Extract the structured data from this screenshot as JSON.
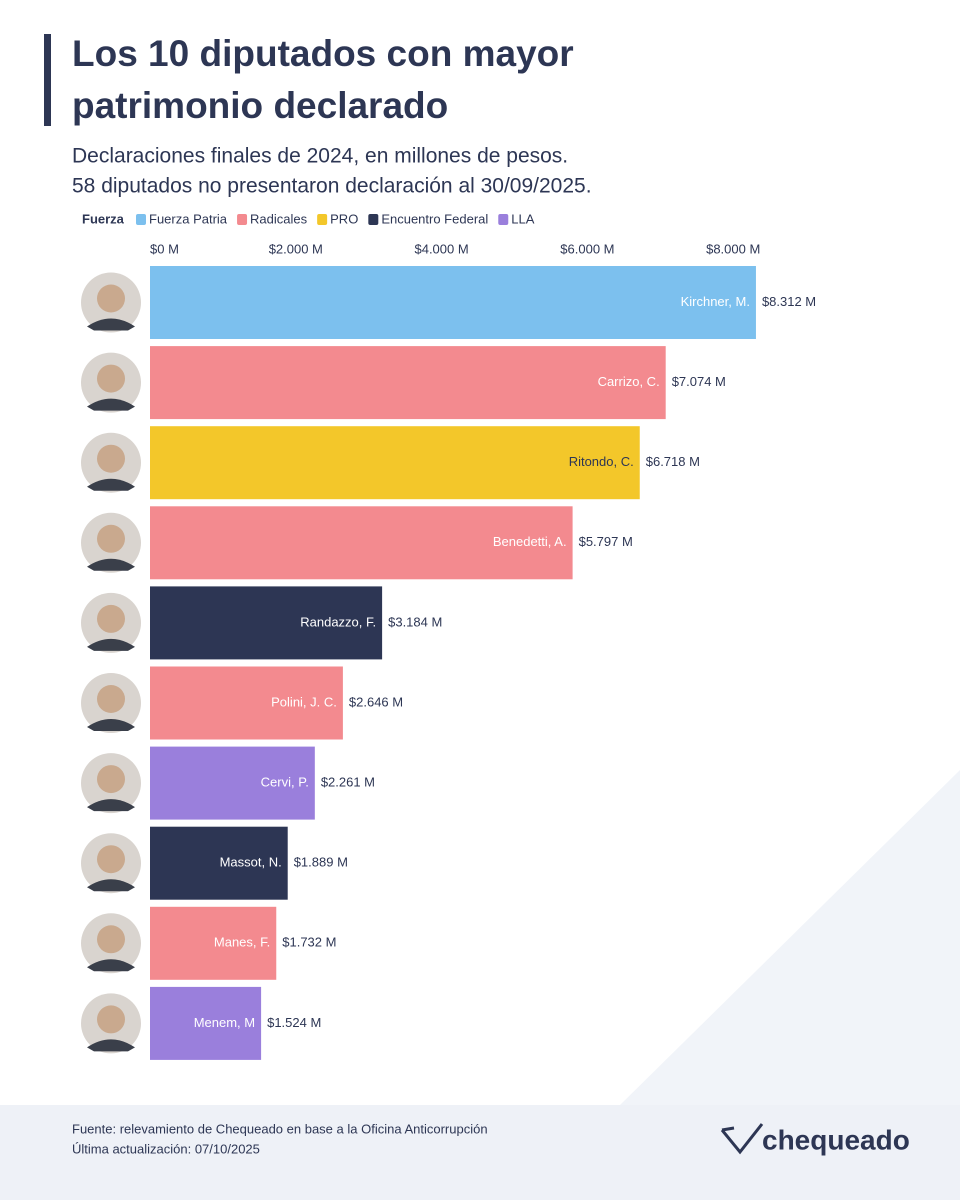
{
  "chart_data": {
    "type": "bar",
    "orientation": "horizontal",
    "title_lines": [
      "Los 10 diputados con mayor",
      "patrimonio declarado"
    ],
    "subtitle_lines": [
      "Declaraciones finales de 2024, en millones de pesos.",
      "58 diputados no presentaron declaración al 30/09/2025."
    ],
    "legend_title": "Fuerza",
    "legend": [
      {
        "name": "Fuerza Patria",
        "color": "#7cc0ee"
      },
      {
        "name": "Radicales",
        "color": "#f38a8f"
      },
      {
        "name": "PRO",
        "color": "#f3c72a"
      },
      {
        "name": "Encuentro Federal",
        "color": "#2d3654"
      },
      {
        "name": "LLA",
        "color": "#9a7fdc"
      }
    ],
    "categories": [
      "Kirchner, M.",
      "Carrizo, C.",
      "Ritondo, C.",
      "Benedetti, A.",
      "Randazzo, F.",
      "Polini, J. C.",
      "Cervi, P.",
      "Massot, N.",
      "Manes, F.",
      "Menem, M"
    ],
    "values": [
      8312,
      7074,
      6718,
      5797,
      3184,
      2646,
      2261,
      1889,
      1732,
      1524
    ],
    "value_labels": [
      "$8.312 M",
      "$7.074 M",
      "$6.718 M",
      "$5.797 M",
      "$3.184 M",
      "$2.646 M",
      "$2.261 M",
      "$1.889 M",
      "$1.732 M",
      "$1.524 M"
    ],
    "colors": [
      "#7cc0ee",
      "#f38a8f",
      "#f3c72a",
      "#f38a8f",
      "#2d3654",
      "#f38a8f",
      "#9a7fdc",
      "#2d3654",
      "#f38a8f",
      "#9a7fdc"
    ],
    "xlim": [
      0,
      10000
    ],
    "xticks": [
      {
        "value": 0,
        "label": "$0 M"
      },
      {
        "value": 2000,
        "label": "$2.000 M"
      },
      {
        "value": 4000,
        "label": "$4.000 M"
      },
      {
        "value": 6000,
        "label": "$6.000 M"
      },
      {
        "value": 8000,
        "label": "$8.000 M"
      }
    ],
    "source": "Fuente: relevamiento de Chequeado en base a la Oficina Anticorrupción",
    "updated": "Última actualización: 07/10/2025",
    "brand": "chequeado"
  }
}
